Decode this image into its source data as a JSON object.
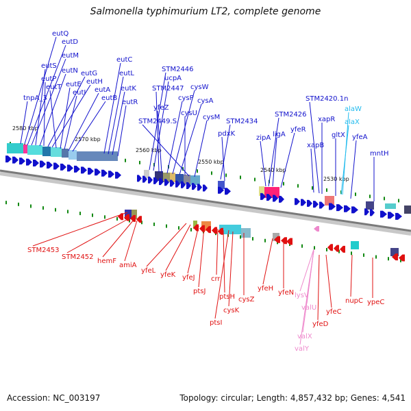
{
  "title": "Salmonella typhimurium LT2, complete genome",
  "footer": {
    "accession": "Accession: NC_003197",
    "summary": "Topology: circular; Length: 4,857,432 bp; Genes: 4,541"
  },
  "colors": {
    "forward_gene": "#1010cc",
    "reverse_gene": "#e01010",
    "forward_rna": "#22bbee",
    "reverse_rna": "#ee88cc",
    "backbone": "#808080",
    "tick": "#118811"
  },
  "kbp_ticks": [
    "2580 kbp",
    "2570 kbp",
    "2560 kbp",
    "2550 kbp",
    "2540 kbp",
    "2530 kbp"
  ],
  "forward_genes": [
    "eutQ",
    "eutD",
    "eutM",
    "eutS",
    "eutN",
    "eutP",
    "eutG",
    "eutH",
    "eutT",
    "eutE",
    "eutI",
    "eutA",
    "eutB",
    "eutC",
    "eutL",
    "eutK",
    "eutR",
    "tnpA_3",
    "STM2446",
    "ucpA",
    "STM2447",
    "yfeZ",
    "cysP",
    "cysW",
    "cysA",
    "cysU",
    "STM2449.S",
    "cysM",
    "STM2434",
    "pdxK",
    "STM2426",
    "ligA",
    "yfeR",
    "zipA",
    "STM2420.1n",
    "xapR",
    "xapB",
    "gltX",
    "yfeA",
    "mntH"
  ],
  "forward_rna": [
    "alaW",
    "alaX"
  ],
  "reverse_genes": [
    "STM2453",
    "STM2452",
    "hemF",
    "amiA",
    "yfeL",
    "yfeK",
    "yfeJ",
    "ptsJ",
    "crr",
    "ptsH",
    "ptsI",
    "cysK",
    "cysZ",
    "yfeH",
    "yfeN",
    "yfeD",
    "yfeC",
    "nupC",
    "ypeC"
  ],
  "reverse_rna": [
    "lysV",
    "valU",
    "valX",
    "valY"
  ]
}
